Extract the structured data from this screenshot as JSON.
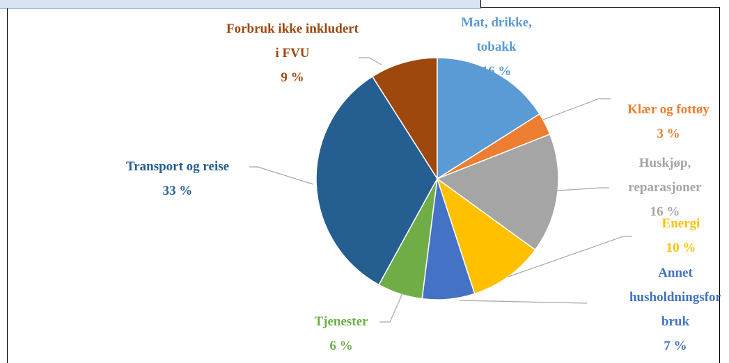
{
  "chart_data": {
    "type": "pie",
    "categories": [
      "Mat, drikke, tobakk",
      "Klær og fottøy",
      "Huskjøp, reparasjoner",
      "Energi",
      "Annet husholdningsforbruk",
      "Tjenester",
      "Transport og reise",
      "Forbruk ikke inkludert i FVU"
    ],
    "values": [
      16,
      3,
      16,
      10,
      7,
      6,
      33,
      9
    ],
    "value_labels": [
      "16 %",
      "3 %",
      "16 %",
      "10 %",
      "7 %",
      "6 %",
      "33 %",
      "9 %"
    ],
    "colors": [
      "#5b9bd5",
      "#ed7d31",
      "#a5a5a5",
      "#ffc000",
      "#4472c4",
      "#70ad47",
      "#255e91",
      "#9e480e"
    ]
  }
}
